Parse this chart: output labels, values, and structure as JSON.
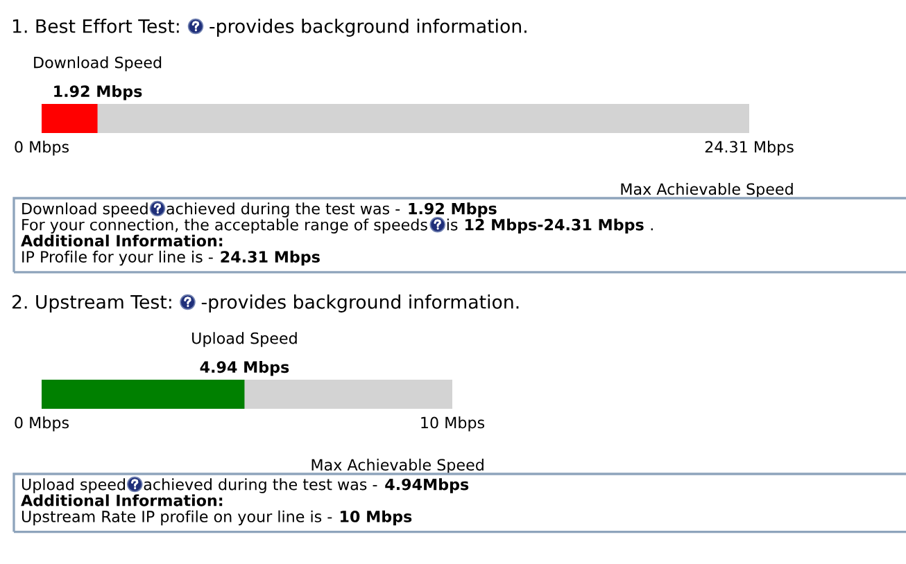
{
  "chart_data": [
    {
      "type": "bar",
      "orientation": "horizontal",
      "title": "1. Best Effort Test:",
      "subtitle": "-provides background information.",
      "categories": [
        "Download Speed"
      ],
      "values": [
        1.92
      ],
      "color": "#ff0000",
      "value_labels": [
        "1.92 Mbps"
      ],
      "xlim": [
        0,
        24.31
      ],
      "xticks": [
        {
          "value": 0,
          "label": "0 Mbps"
        },
        {
          "value": 24.31,
          "label": "24.31 Mbps"
        }
      ],
      "xlabel": "Max Achievable Speed",
      "bands": [
        {
          "axis": "x",
          "from": 0,
          "to": 24.31,
          "color": "#d3d3d3"
        }
      ],
      "annotations": [
        "Download speed",
        "achieved during the test was -",
        "1.92 Mbps",
        "For your connection, the acceptable range of speeds",
        "is",
        "12 Mbps-24.31 Mbps",
        ".",
        "Additional Information:",
        "IP Profile for your line is -",
        "24.31 Mbps"
      ]
    },
    {
      "type": "bar",
      "orientation": "horizontal",
      "title": "2. Upstream Test:",
      "subtitle": "-provides background information.",
      "categories": [
        "Upload Speed"
      ],
      "values": [
        4.94
      ],
      "color": "#008000",
      "value_labels": [
        "4.94 Mbps"
      ],
      "xlim": [
        0,
        10
      ],
      "xticks": [
        {
          "value": 0,
          "label": "0 Mbps"
        },
        {
          "value": 10,
          "label": "10 Mbps"
        }
      ],
      "xlabel": "Max Achievable Speed",
      "bands": [
        {
          "axis": "x",
          "from": 0,
          "to": 10,
          "color": "#d3d3d3"
        }
      ],
      "annotations": [
        "Upload speed",
        "achieved during the test was -",
        "4.94Mbps",
        "Additional Information:",
        "Upstream Rate IP profile on your line is -",
        "10 Mbps"
      ]
    }
  ]
}
